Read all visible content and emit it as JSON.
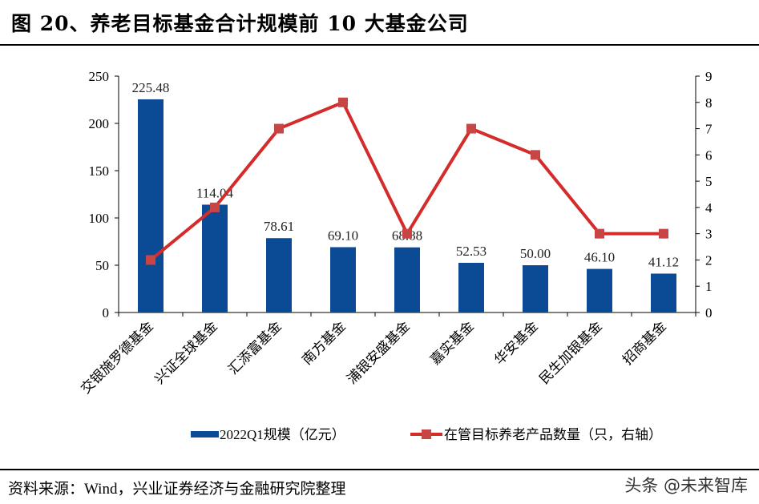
{
  "title": "图 20、养老目标基金合计规模前 10 大基金公司",
  "source": "资料来源：Wind，兴业证券经济与金融研究院整理",
  "watermark": "头条 @未来智库",
  "chart_data": {
    "type": "bar+line",
    "categories": [
      "交银施罗德基金",
      "兴证全球基金",
      "汇添富基金",
      "南方基金",
      "浦银安盛基金",
      "嘉实基金",
      "华安基金",
      "民生加银基金",
      "招商基金"
    ],
    "series": [
      {
        "name": "2022Q1规模（亿元）",
        "type": "bar",
        "axis": "left",
        "color": "#0b4a94",
        "values": [
          225.48,
          114.04,
          78.61,
          69.1,
          68.88,
          52.53,
          50.0,
          46.1,
          41.12
        ],
        "labels": [
          "225.48",
          "114.04",
          "78.61",
          "69.10",
          "68.88",
          "52.53",
          "50.00",
          "46.10",
          "41.12"
        ]
      },
      {
        "name": "在管目标养老产品数量（只，右轴）",
        "type": "line",
        "axis": "right",
        "color": "#d42b2b",
        "marker_color": "#c84545",
        "values": [
          2,
          4,
          7,
          8,
          3,
          7,
          6,
          3,
          3
        ]
      }
    ],
    "y_left": {
      "min": 0,
      "max": 250,
      "ticks": [
        0,
        50,
        100,
        150,
        200,
        250
      ]
    },
    "y_right": {
      "min": 0,
      "max": 9,
      "ticks": [
        0,
        1,
        2,
        3,
        4,
        5,
        6,
        7,
        8,
        9
      ]
    },
    "legend": "bottom",
    "grid": false
  }
}
